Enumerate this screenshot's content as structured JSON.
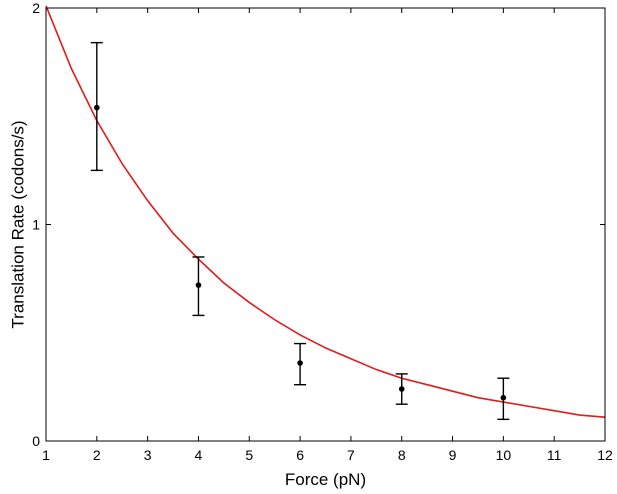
{
  "chart_data": {
    "type": "scatter",
    "title": "",
    "xlabel": "Force (pN)",
    "ylabel": "Translation Rate (codons/s)",
    "xlim": [
      1,
      12
    ],
    "ylim": [
      0,
      2
    ],
    "x_ticks": [
      1,
      2,
      3,
      4,
      5,
      6,
      7,
      8,
      9,
      10,
      11,
      12
    ],
    "y_ticks": [
      0,
      1,
      2
    ],
    "grid": false,
    "legend": "none",
    "series": [
      {
        "type": "scatter-errorbar",
        "color": "#000000",
        "points": [
          {
            "x": 2,
            "y": 1.54,
            "err_low": 1.25,
            "err_high": 1.84
          },
          {
            "x": 4,
            "y": 0.72,
            "err_low": 0.58,
            "err_high": 0.85
          },
          {
            "x": 6,
            "y": 0.36,
            "err_low": 0.26,
            "err_high": 0.45
          },
          {
            "x": 8,
            "y": 0.24,
            "err_low": 0.17,
            "err_high": 0.31
          },
          {
            "x": 10,
            "y": 0.2,
            "err_low": 0.1,
            "err_high": 0.29
          }
        ]
      },
      {
        "type": "line",
        "color": "#e41a1c",
        "x": [
          1,
          1.5,
          2,
          2.5,
          3,
          3.5,
          4,
          4.5,
          5,
          5.5,
          6,
          6.5,
          7,
          7.5,
          8,
          8.5,
          9,
          9.5,
          10,
          10.5,
          11,
          11.5,
          12
        ],
        "y": [
          2.01,
          1.72,
          1.48,
          1.28,
          1.11,
          0.96,
          0.84,
          0.73,
          0.64,
          0.56,
          0.49,
          0.43,
          0.38,
          0.33,
          0.29,
          0.26,
          0.23,
          0.2,
          0.18,
          0.16,
          0.14,
          0.12,
          0.11
        ]
      }
    ]
  }
}
